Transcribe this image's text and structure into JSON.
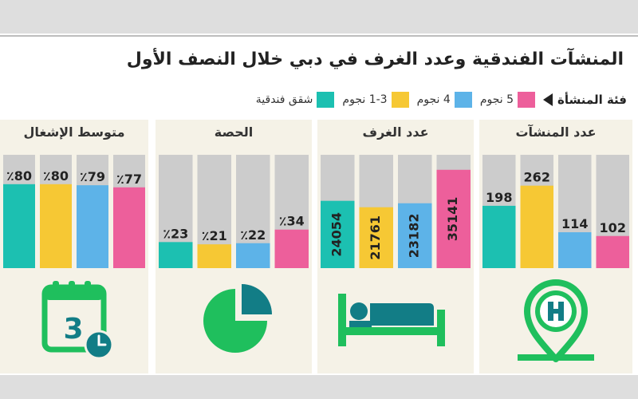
{
  "title": "المنشآت الفندقية وعدد الغرف في دبي خلال النصف الأول",
  "legend": {
    "heading": "فئة المنشأة",
    "items": [
      {
        "label": "5 نجوم",
        "color": "#ed5f9b"
      },
      {
        "label": "4 نجوم",
        "color": "#5db3e8"
      },
      {
        "label": "1-3 نجوم",
        "color": "#f6c834"
      },
      {
        "label": "شقق فندقية",
        "color": "#1cc0b1"
      }
    ]
  },
  "colors": {
    "track": "#cccccc",
    "icon_green": "#1fbf5d",
    "icon_teal": "#127d86",
    "text": "#222222",
    "panel_bg": "#f5f2e7"
  },
  "icons": [
    "hotel-pin-icon",
    "bed-icon",
    "pie-icon",
    "calendar-clock-icon"
  ],
  "calendar_day": "3",
  "chart_data": [
    {
      "type": "bar",
      "title": "عدد المنشآت",
      "categories": [
        "شقق فندقية",
        "1-3 نجوم",
        "4 نجوم",
        "5 نجوم"
      ],
      "values": [
        198,
        262,
        114,
        102
      ],
      "labels": [
        "198",
        "262",
        "114",
        "102"
      ],
      "ylim": [
        0,
        360
      ],
      "label_style": "above"
    },
    {
      "type": "bar",
      "title": "عدد الغرف",
      "categories": [
        "شقق فندقية",
        "1-3 نجوم",
        "4 نجوم",
        "5 نجوم"
      ],
      "values": [
        24054,
        21761,
        23182,
        35141
      ],
      "labels": [
        "24054",
        "21761",
        "23182",
        "35141"
      ],
      "ylim": [
        0,
        40500
      ],
      "label_style": "inside-vertical"
    },
    {
      "type": "bar",
      "title": "الحصة",
      "categories": [
        "شقق فندقية",
        "1-3 نجوم",
        "4 نجوم",
        "5 نجوم"
      ],
      "values": [
        23,
        21,
        22,
        34
      ],
      "labels": [
        "٪23",
        "٪21",
        "٪22",
        "٪34"
      ],
      "ylim": [
        0,
        100
      ],
      "label_style": "above"
    },
    {
      "type": "bar",
      "title": "متوسط الإشغال",
      "categories": [
        "شقق فندقية",
        "1-3 نجوم",
        "4 نجوم",
        "5 نجوم"
      ],
      "values": [
        80,
        80,
        79,
        77
      ],
      "labels": [
        "٪80",
        "٪80",
        "٪79",
        "٪77"
      ],
      "ylim": [
        0,
        108
      ],
      "label_style": "above"
    }
  ]
}
